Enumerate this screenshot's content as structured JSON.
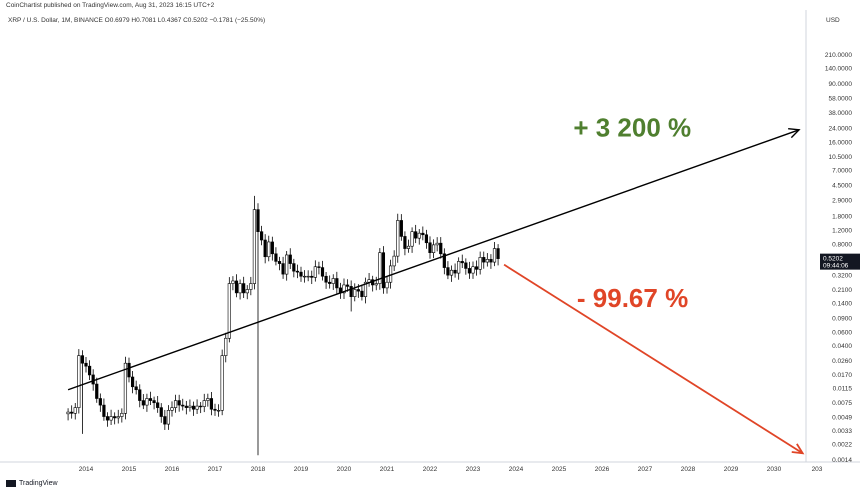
{
  "publisher_line": "CoinChartist published on TradingView.com, Aug 31, 2023 16:15 UTC+2",
  "symbol_line": "XRP / U.S. Dollar, 1M, BINANCE  O0.6979  H0.7081  L0.4367  C0.5202  −0.1781 (−25.50%)",
  "currency": "USD",
  "brand": "TradingView",
  "price_tag": {
    "value": "0.5202",
    "countdown": "09:44:06"
  },
  "colors": {
    "up_annotation": "#4f7f2f",
    "down_annotation": "#e04527",
    "trendline": "#000000",
    "candles": "#000000"
  },
  "chart_data": {
    "type": "candlestick",
    "y_scale": "log",
    "ylim": [
      0.0014,
      210
    ],
    "xlim": [
      "2013-06",
      "2030-12"
    ],
    "x_tick_labels": [
      "2014",
      "2015",
      "2016",
      "2017",
      "2018",
      "2019",
      "2020",
      "2021",
      "2022",
      "2023",
      "2024",
      "2025",
      "2026",
      "2027",
      "2028",
      "2029",
      "2030",
      "203"
    ],
    "y_tick_labels": [
      "210.0000",
      "140.0000",
      "90.0000",
      "58.0000",
      "38.0000",
      "24.0000",
      "16.0000",
      "10.5000",
      "7.0000",
      "4.5000",
      "2.9000",
      "1.8000",
      "1.2000",
      "0.8000",
      "0.5202",
      "0.3200",
      "0.2100",
      "0.1400",
      "0.0900",
      "0.0600",
      "0.0400",
      "0.0260",
      "0.0170",
      "0.0115",
      "0.0075",
      "0.0049",
      "0.0033",
      "0.0022",
      "0.0014"
    ],
    "monthly_close": [
      [
        "2013-08",
        0.0057
      ],
      [
        "2013-09",
        0.0055
      ],
      [
        "2013-10",
        0.0065
      ],
      [
        "2013-11",
        0.03
      ],
      [
        "2013-12",
        0.024
      ],
      [
        "2014-01",
        0.022
      ],
      [
        "2014-02",
        0.017
      ],
      [
        "2014-03",
        0.013
      ],
      [
        "2014-04",
        0.0085
      ],
      [
        "2014-05",
        0.007
      ],
      [
        "2014-06",
        0.005
      ],
      [
        "2014-07",
        0.0045
      ],
      [
        "2014-08",
        0.005
      ],
      [
        "2014-09",
        0.0048
      ],
      [
        "2014-10",
        0.005
      ],
      [
        "2014-11",
        0.0055
      ],
      [
        "2014-12",
        0.024
      ],
      [
        "2015-01",
        0.016
      ],
      [
        "2015-02",
        0.012
      ],
      [
        "2015-03",
        0.011
      ],
      [
        "2015-04",
        0.008
      ],
      [
        "2015-05",
        0.007
      ],
      [
        "2015-06",
        0.0085
      ],
      [
        "2015-07",
        0.008
      ],
      [
        "2015-08",
        0.0075
      ],
      [
        "2015-09",
        0.0065
      ],
      [
        "2015-10",
        0.005
      ],
      [
        "2015-11",
        0.004
      ],
      [
        "2015-12",
        0.006
      ],
      [
        "2016-01",
        0.0065
      ],
      [
        "2016-02",
        0.008
      ],
      [
        "2016-03",
        0.007
      ],
      [
        "2016-04",
        0.0068
      ],
      [
        "2016-05",
        0.0065
      ],
      [
        "2016-06",
        0.0068
      ],
      [
        "2016-07",
        0.0062
      ],
      [
        "2016-08",
        0.0068
      ],
      [
        "2016-09",
        0.0067
      ],
      [
        "2016-10",
        0.008
      ],
      [
        "2016-11",
        0.0085
      ],
      [
        "2016-12",
        0.0062
      ],
      [
        "2017-01",
        0.006
      ],
      [
        "2017-02",
        0.006
      ],
      [
        "2017-03",
        0.03
      ],
      [
        "2017-04",
        0.05
      ],
      [
        "2017-05",
        0.25
      ],
      [
        "2017-06",
        0.27
      ],
      [
        "2017-07",
        0.19
      ],
      [
        "2017-08",
        0.25
      ],
      [
        "2017-09",
        0.19
      ],
      [
        "2017-10",
        0.21
      ],
      [
        "2017-11",
        0.25
      ],
      [
        "2017-12",
        2.2
      ],
      [
        "2018-01",
        1.15
      ],
      [
        "2018-02",
        0.9
      ],
      [
        "2018-03",
        0.55
      ],
      [
        "2018-04",
        0.85
      ],
      [
        "2018-05",
        0.6
      ],
      [
        "2018-06",
        0.48
      ],
      [
        "2018-07",
        0.45
      ],
      [
        "2018-08",
        0.33
      ],
      [
        "2018-09",
        0.58
      ],
      [
        "2018-10",
        0.45
      ],
      [
        "2018-11",
        0.36
      ],
      [
        "2018-12",
        0.35
      ],
      [
        "2019-01",
        0.31
      ],
      [
        "2019-02",
        0.31
      ],
      [
        "2019-03",
        0.31
      ],
      [
        "2019-04",
        0.3
      ],
      [
        "2019-05",
        0.41
      ],
      [
        "2019-06",
        0.4
      ],
      [
        "2019-07",
        0.31
      ],
      [
        "2019-08",
        0.26
      ],
      [
        "2019-09",
        0.25
      ],
      [
        "2019-10",
        0.29
      ],
      [
        "2019-11",
        0.22
      ],
      [
        "2019-12",
        0.19
      ],
      [
        "2020-01",
        0.24
      ],
      [
        "2020-02",
        0.23
      ],
      [
        "2020-03",
        0.17
      ],
      [
        "2020-04",
        0.21
      ],
      [
        "2020-05",
        0.2
      ],
      [
        "2020-06",
        0.17
      ],
      [
        "2020-07",
        0.26
      ],
      [
        "2020-08",
        0.28
      ],
      [
        "2020-09",
        0.24
      ],
      [
        "2020-10",
        0.25
      ],
      [
        "2020-11",
        0.62
      ],
      [
        "2020-12",
        0.22
      ],
      [
        "2021-01",
        0.26
      ],
      [
        "2021-02",
        0.42
      ],
      [
        "2021-03",
        0.56
      ],
      [
        "2021-04",
        1.6
      ],
      [
        "2021-05",
        1.0
      ],
      [
        "2021-06",
        0.7
      ],
      [
        "2021-07",
        0.75
      ],
      [
        "2021-08",
        1.15
      ],
      [
        "2021-09",
        0.95
      ],
      [
        "2021-10",
        1.1
      ],
      [
        "2021-11",
        1.05
      ],
      [
        "2021-12",
        0.83
      ],
      [
        "2022-01",
        0.62
      ],
      [
        "2022-02",
        0.78
      ],
      [
        "2022-03",
        0.82
      ],
      [
        "2022-04",
        0.6
      ],
      [
        "2022-05",
        0.4
      ],
      [
        "2022-06",
        0.32
      ],
      [
        "2022-07",
        0.37
      ],
      [
        "2022-08",
        0.34
      ],
      [
        "2022-09",
        0.48
      ],
      [
        "2022-10",
        0.46
      ],
      [
        "2022-11",
        0.39
      ],
      [
        "2022-12",
        0.34
      ],
      [
        "2023-01",
        0.41
      ],
      [
        "2023-02",
        0.38
      ],
      [
        "2023-03",
        0.54
      ],
      [
        "2023-04",
        0.47
      ],
      [
        "2023-05",
        0.51
      ],
      [
        "2023-06",
        0.47
      ],
      [
        "2023-07",
        0.7
      ],
      [
        "2023-08",
        0.52
      ]
    ],
    "trendline": {
      "from": [
        "2013-08",
        0.011
      ],
      "to": [
        "2030-08",
        23.0
      ]
    },
    "projection_arrow": {
      "from": [
        "2023-08",
        0.52
      ],
      "to": [
        "2030-09",
        0.0017
      ]
    },
    "annotations": [
      {
        "text": "+ 3 200 %",
        "anchor": [
          "2025-05",
          19.0
        ],
        "color": "#4f7f2f"
      },
      {
        "text": "- 99.67 %",
        "anchor": [
          "2025-06",
          0.125
        ],
        "color": "#e04527"
      }
    ]
  }
}
